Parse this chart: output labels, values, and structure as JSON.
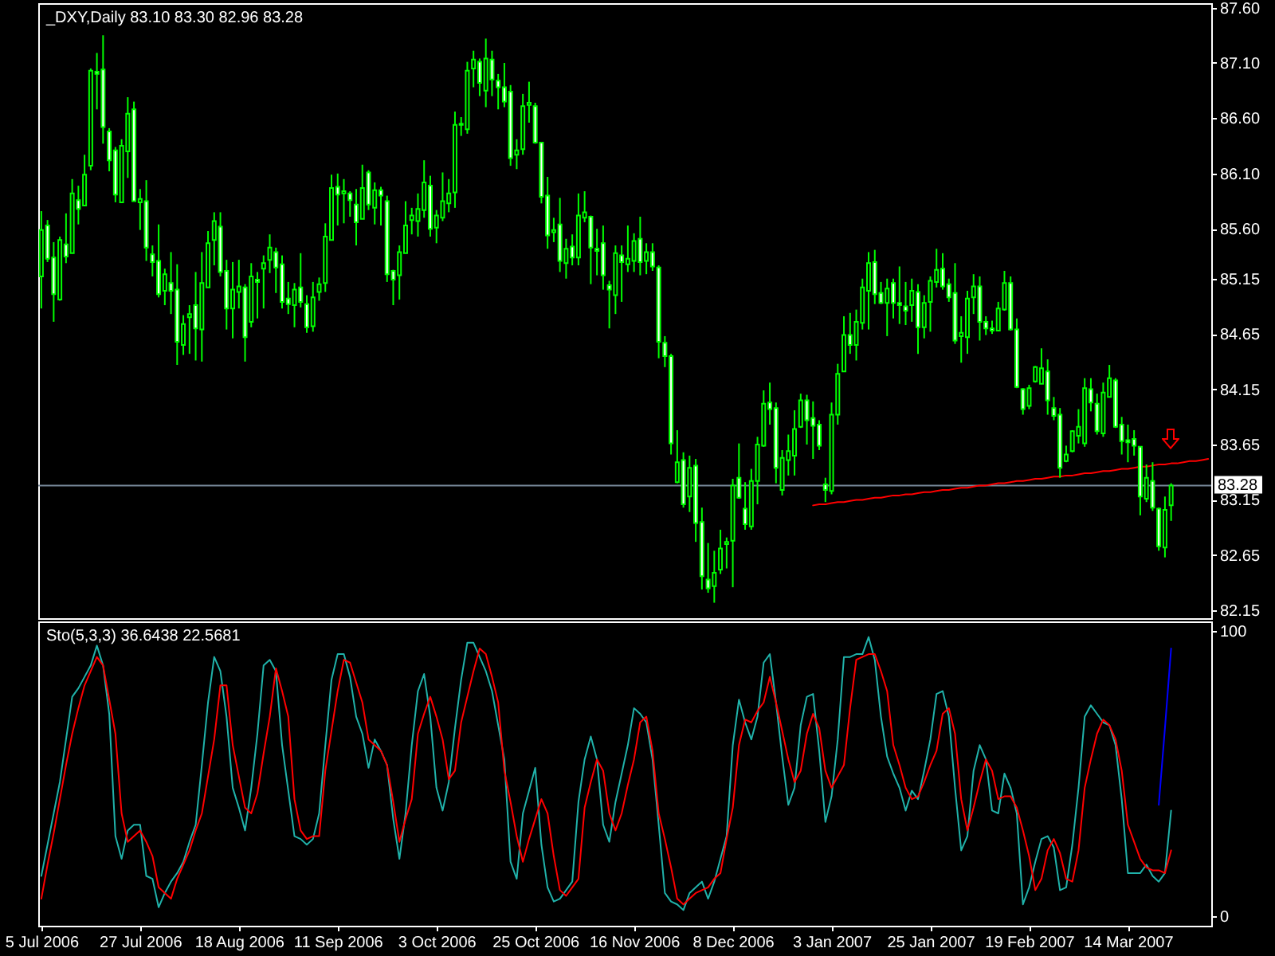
{
  "chart_data": [
    {
      "type": "candlestick",
      "title": "_DXY,Daily 83.10 83.30 82.96 83.28",
      "color": "#00ff00",
      "categories": [
        null,
        null,
        null,
        null,
        null,
        null,
        null,
        null,
        null,
        null,
        null,
        null,
        null,
        null,
        null,
        null,
        null,
        null,
        null,
        null,
        null,
        null,
        null,
        null,
        null,
        null,
        null,
        null,
        null,
        null,
        null,
        null,
        null,
        null,
        null,
        null,
        null,
        null,
        null,
        null,
        null,
        null,
        null,
        null,
        null,
        null,
        null,
        null,
        null,
        null,
        null,
        null,
        null,
        null,
        null,
        null,
        null,
        null,
        null,
        null,
        null,
        null,
        null,
        null,
        null,
        null,
        null,
        null,
        null,
        null,
        null,
        null,
        null,
        null,
        null,
        null,
        null,
        null,
        null,
        null,
        null,
        null,
        null,
        null,
        null,
        null,
        null,
        null,
        null,
        null,
        null,
        null,
        null,
        null,
        null,
        null,
        null,
        null,
        null,
        null,
        null,
        null,
        null,
        null,
        null,
        null,
        null,
        null,
        null,
        null,
        null,
        null,
        null,
        null,
        null,
        null,
        null,
        null,
        null,
        null,
        null,
        null,
        null,
        null,
        null,
        null,
        null,
        null,
        null,
        null,
        null,
        null,
        null,
        null,
        null,
        null,
        null,
        null,
        null,
        null,
        null,
        null,
        null,
        null,
        null,
        null,
        null,
        null,
        null,
        null,
        null,
        null,
        null,
        null,
        null,
        null,
        null,
        null,
        null,
        null,
        null,
        null,
        null,
        null,
        null,
        null,
        null,
        null,
        null,
        null,
        null,
        null,
        null,
        null,
        null,
        null,
        null,
        null,
        null,
        null,
        null,
        null,
        null,
        null,
        null,
        null,
        null,
        null,
        null,
        null
      ],
      "ohlc": [
        [
          85.17,
          85.76,
          84.88,
          85.59
        ],
        [
          85.63,
          85.68,
          85.3,
          85.33
        ],
        [
          85.34,
          85.48,
          84.76,
          85.01
        ],
        [
          84.96,
          85.53,
          84.95,
          85.5
        ],
        [
          85.46,
          85.74,
          85.29,
          85.35
        ],
        [
          85.38,
          86.05,
          85.38,
          85.92
        ],
        [
          85.86,
          85.99,
          85.64,
          85.78
        ],
        [
          85.81,
          86.27,
          85.81,
          86.09
        ],
        [
          86.17,
          87.05,
          86.13,
          87.03
        ],
        [
          87.02,
          87.19,
          86.68,
          87.0
        ],
        [
          87.04,
          87.35,
          86.37,
          86.52
        ],
        [
          86.48,
          86.51,
          86.12,
          86.22
        ],
        [
          86.31,
          86.34,
          85.84,
          85.91
        ],
        [
          85.84,
          86.41,
          85.84,
          86.35
        ],
        [
          86.3,
          86.79,
          86.06,
          86.64
        ],
        [
          86.68,
          86.75,
          85.85,
          85.85
        ],
        [
          85.84,
          85.96,
          85.59,
          85.87
        ],
        [
          85.85,
          86.04,
          85.31,
          85.43
        ],
        [
          85.37,
          85.45,
          85.17,
          85.3
        ],
        [
          85.31,
          85.64,
          84.98,
          85.01
        ],
        [
          85.04,
          85.24,
          84.91,
          85.19
        ],
        [
          85.11,
          85.39,
          84.83,
          85.04
        ],
        [
          85.05,
          85.28,
          84.37,
          84.58
        ],
        [
          84.55,
          84.82,
          84.46,
          84.74
        ],
        [
          84.8,
          84.91,
          84.47,
          84.83
        ],
        [
          84.91,
          85.21,
          84.41,
          84.7
        ],
        [
          84.69,
          85.39,
          84.4,
          85.11
        ],
        [
          85.07,
          85.58,
          85.07,
          85.47
        ],
        [
          85.5,
          85.75,
          85.27,
          85.67
        ],
        [
          85.62,
          85.75,
          85.17,
          85.21
        ],
        [
          85.22,
          85.32,
          84.69,
          84.88
        ],
        [
          84.88,
          85.3,
          84.61,
          85.05
        ],
        [
          85.03,
          85.32,
          84.88,
          85.08
        ],
        [
          85.07,
          85.1,
          84.4,
          84.62
        ],
        [
          84.76,
          85.29,
          84.71,
          85.17
        ],
        [
          85.14,
          85.21,
          84.79,
          85.12
        ],
        [
          85.24,
          85.36,
          84.88,
          85.29
        ],
        [
          85.32,
          85.55,
          85.2,
          85.43
        ],
        [
          85.39,
          85.43,
          85.02,
          85.25
        ],
        [
          85.28,
          85.36,
          84.88,
          84.94
        ],
        [
          84.97,
          85.12,
          84.83,
          84.92
        ],
        [
          84.91,
          85.11,
          84.71,
          85.05
        ],
        [
          85.07,
          85.38,
          84.89,
          84.94
        ],
        [
          84.92,
          85.0,
          84.66,
          84.71
        ],
        [
          84.72,
          85.12,
          84.67,
          84.98
        ],
        [
          85.03,
          85.16,
          84.95,
          85.1
        ],
        [
          85.11,
          85.65,
          85.03,
          85.53
        ],
        [
          85.5,
          86.09,
          85.5,
          85.97
        ],
        [
          85.98,
          86.1,
          85.63,
          85.91
        ],
        [
          85.92,
          86.05,
          85.65,
          85.94
        ],
        [
          85.92,
          85.94,
          85.71,
          85.86
        ],
        [
          85.82,
          85.96,
          85.45,
          85.66
        ],
        [
          85.69,
          86.18,
          85.69,
          85.97
        ],
        [
          86.11,
          86.13,
          85.77,
          85.82
        ],
        [
          85.79,
          86.02,
          85.64,
          85.95
        ],
        [
          85.95,
          85.98,
          85.63,
          85.9
        ],
        [
          85.85,
          85.9,
          85.12,
          85.19
        ],
        [
          85.22,
          85.23,
          84.91,
          85.14
        ],
        [
          85.18,
          85.45,
          84.96,
          85.39
        ],
        [
          85.38,
          85.85,
          85.38,
          85.63
        ],
        [
          85.68,
          85.79,
          85.55,
          85.72
        ],
        [
          85.67,
          85.92,
          85.53,
          85.78
        ],
        [
          85.77,
          86.22,
          85.7,
          86.02
        ],
        [
          85.99,
          86.08,
          85.53,
          85.6
        ],
        [
          85.61,
          85.77,
          85.47,
          85.72
        ],
        [
          85.7,
          86.11,
          85.67,
          85.85
        ],
        [
          85.83,
          86.05,
          85.75,
          85.92
        ],
        [
          85.93,
          86.66,
          85.79,
          86.54
        ],
        [
          86.54,
          86.61,
          86.44,
          86.55
        ],
        [
          86.5,
          87.11,
          86.46,
          87.03
        ],
        [
          87.05,
          87.21,
          86.88,
          87.13
        ],
        [
          87.11,
          87.14,
          86.8,
          86.92
        ],
        [
          86.85,
          87.32,
          86.7,
          87.14
        ],
        [
          87.13,
          87.21,
          86.8,
          86.95
        ],
        [
          86.94,
          87.0,
          86.68,
          86.88
        ],
        [
          86.88,
          87.1,
          86.7,
          86.75
        ],
        [
          86.84,
          86.9,
          86.17,
          86.24
        ],
        [
          86.27,
          86.41,
          86.14,
          86.31
        ],
        [
          86.32,
          86.82,
          86.27,
          86.71
        ],
        [
          86.72,
          86.93,
          86.56,
          86.74
        ],
        [
          86.71,
          86.74,
          86.37,
          86.38
        ],
        [
          86.38,
          86.38,
          85.83,
          85.89
        ],
        [
          85.9,
          86.07,
          85.42,
          85.54
        ],
        [
          85.57,
          85.7,
          85.48,
          85.59
        ],
        [
          85.64,
          85.88,
          85.21,
          85.31
        ],
        [
          85.29,
          85.51,
          85.15,
          85.42
        ],
        [
          85.44,
          85.55,
          85.27,
          85.34
        ],
        [
          85.34,
          85.92,
          85.27,
          85.72
        ],
        [
          85.7,
          85.94,
          85.66,
          85.75
        ],
        [
          85.71,
          85.72,
          85.1,
          85.43
        ],
        [
          85.42,
          85.6,
          85.18,
          85.4
        ],
        [
          85.47,
          85.63,
          85.05,
          85.18
        ],
        [
          85.09,
          85.13,
          84.7,
          85.05
        ],
        [
          85.0,
          85.45,
          84.83,
          85.38
        ],
        [
          85.36,
          85.45,
          84.94,
          85.3
        ],
        [
          85.28,
          85.63,
          85.21,
          85.33
        ],
        [
          85.31,
          85.56,
          85.21,
          85.49
        ],
        [
          85.51,
          85.71,
          85.18,
          85.3
        ],
        [
          85.31,
          85.47,
          85.19,
          85.39
        ],
        [
          85.39,
          85.47,
          85.22,
          85.26
        ],
        [
          85.25,
          85.27,
          84.43,
          84.58
        ],
        [
          84.57,
          84.63,
          84.35,
          84.45
        ],
        [
          84.45,
          84.47,
          83.56,
          83.66
        ],
        [
          83.31,
          83.78,
          83.3,
          83.49
        ],
        [
          83.51,
          83.58,
          83.08,
          83.11
        ],
        [
          83.18,
          83.55,
          83.04,
          83.44
        ],
        [
          83.46,
          83.52,
          82.77,
          82.94
        ],
        [
          82.95,
          83.08,
          82.34,
          82.46
        ],
        [
          82.43,
          82.76,
          82.31,
          82.35
        ],
        [
          82.37,
          82.69,
          82.22,
          82.49
        ],
        [
          82.52,
          82.88,
          82.48,
          82.71
        ],
        [
          82.75,
          82.81,
          82.53,
          82.77
        ],
        [
          82.78,
          83.34,
          82.36,
          83.28
        ],
        [
          83.35,
          83.66,
          83.16,
          83.17
        ],
        [
          83.07,
          83.31,
          82.88,
          82.93
        ],
        [
          82.91,
          83.43,
          82.88,
          83.32
        ],
        [
          83.32,
          83.72,
          83.11,
          83.65
        ],
        [
          83.64,
          84.14,
          83.63,
          84.02
        ],
        [
          84.03,
          84.21,
          83.83,
          83.97
        ],
        [
          83.98,
          84.03,
          83.3,
          83.44
        ],
        [
          83.24,
          83.6,
          83.19,
          83.53
        ],
        [
          83.51,
          83.74,
          83.37,
          83.59
        ],
        [
          83.55,
          83.96,
          83.37,
          83.79
        ],
        [
          83.81,
          84.11,
          83.8,
          84.05
        ],
        [
          84.05,
          84.1,
          83.65,
          83.87
        ],
        [
          83.89,
          84.04,
          83.52,
          83.82
        ],
        [
          83.83,
          83.87,
          83.6,
          83.64
        ],
        [
          83.29,
          83.35,
          83.13,
          83.24
        ],
        [
          83.23,
          84.03,
          83.2,
          83.92
        ],
        [
          83.92,
          84.38,
          83.83,
          84.29
        ],
        [
          84.31,
          84.81,
          84.31,
          84.64
        ],
        [
          84.64,
          84.84,
          84.47,
          84.55
        ],
        [
          84.55,
          84.87,
          84.41,
          84.76
        ],
        [
          84.75,
          85.15,
          84.69,
          85.07
        ],
        [
          85.04,
          85.39,
          84.69,
          85.29
        ],
        [
          85.3,
          85.41,
          84.92,
          85.01
        ],
        [
          85.02,
          85.12,
          84.92,
          84.93
        ],
        [
          84.93,
          85.15,
          84.63,
          85.06
        ],
        [
          85.11,
          85.15,
          84.79,
          84.93
        ],
        [
          84.93,
          85.26,
          84.74,
          84.91
        ],
        [
          84.9,
          85.12,
          84.73,
          84.86
        ],
        [
          84.91,
          85.15,
          84.76,
          85.04
        ],
        [
          85.03,
          85.1,
          84.47,
          84.71
        ],
        [
          84.71,
          85.0,
          84.61,
          84.93
        ],
        [
          84.94,
          85.17,
          84.67,
          85.13
        ],
        [
          85.12,
          85.42,
          85.07,
          85.23
        ],
        [
          85.24,
          85.38,
          85.05,
          85.08
        ],
        [
          85.1,
          85.15,
          84.94,
          84.98
        ],
        [
          85.02,
          85.29,
          84.56,
          84.59
        ],
        [
          84.63,
          84.81,
          84.39,
          84.66
        ],
        [
          84.62,
          85.04,
          84.47,
          84.97
        ],
        [
          84.98,
          85.19,
          84.83,
          85.08
        ],
        [
          85.08,
          85.17,
          84.59,
          84.76
        ],
        [
          84.76,
          84.81,
          84.64,
          84.7
        ],
        [
          84.7,
          84.77,
          84.65,
          84.68
        ],
        [
          84.68,
          84.94,
          84.68,
          84.88
        ],
        [
          84.87,
          85.22,
          84.86,
          85.11
        ],
        [
          85.11,
          85.17,
          84.68,
          84.69
        ],
        [
          84.69,
          84.79,
          84.16,
          84.17
        ],
        [
          84.15,
          84.16,
          83.92,
          83.97
        ],
        [
          84.0,
          84.19,
          83.97,
          84.16
        ],
        [
          84.22,
          84.36,
          84.21,
          84.35
        ],
        [
          84.2,
          84.52,
          84.2,
          84.34
        ],
        [
          84.31,
          84.42,
          83.92,
          84.05
        ],
        [
          83.98,
          84.08,
          83.87,
          83.91
        ],
        [
          83.92,
          83.98,
          83.35,
          83.44
        ],
        [
          83.5,
          83.64,
          83.49,
          83.56
        ],
        [
          83.59,
          83.78,
          83.58,
          83.77
        ],
        [
          83.73,
          83.97,
          83.66,
          83.81
        ],
        [
          83.66,
          84.25,
          83.63,
          84.16
        ],
        [
          84.15,
          84.25,
          83.95,
          84.03
        ],
        [
          84.02,
          84.11,
          83.74,
          83.77
        ],
        [
          83.75,
          84.21,
          83.72,
          84.12
        ],
        [
          84.08,
          84.37,
          84.08,
          84.25
        ],
        [
          84.23,
          84.25,
          83.8,
          83.81
        ],
        [
          83.83,
          83.9,
          83.56,
          83.68
        ],
        [
          83.69,
          83.83,
          83.49,
          83.67
        ],
        [
          83.7,
          83.78,
          83.55,
          83.64
        ],
        [
          83.63,
          83.63,
          83.01,
          83.18
        ],
        [
          83.16,
          83.47,
          83.13,
          83.35
        ],
        [
          83.32,
          83.49,
          83.05,
          83.08
        ],
        [
          83.07,
          83.08,
          82.69,
          82.73
        ],
        [
          82.72,
          83.18,
          82.63,
          83.06
        ],
        [
          83.1,
          83.3,
          82.96,
          83.28
        ],
        null,
        null,
        null,
        null,
        null,
        null
      ],
      "series": [
        {
          "type": "line",
          "color": "#ff0000",
          "values": [
            null,
            null,
            null,
            null,
            null,
            null,
            null,
            null,
            null,
            null,
            null,
            null,
            null,
            null,
            null,
            null,
            null,
            null,
            null,
            null,
            null,
            null,
            null,
            null,
            null,
            null,
            null,
            null,
            null,
            null,
            null,
            null,
            null,
            null,
            null,
            null,
            null,
            null,
            null,
            null,
            null,
            null,
            null,
            null,
            null,
            null,
            null,
            null,
            null,
            null,
            null,
            null,
            null,
            null,
            null,
            null,
            null,
            null,
            null,
            null,
            null,
            null,
            null,
            null,
            null,
            null,
            null,
            null,
            null,
            null,
            null,
            null,
            null,
            null,
            null,
            null,
            null,
            null,
            null,
            null,
            null,
            null,
            null,
            null,
            null,
            null,
            null,
            null,
            null,
            null,
            null,
            null,
            null,
            null,
            null,
            null,
            null,
            null,
            null,
            null,
            null,
            null,
            null,
            null,
            null,
            null,
            null,
            null,
            null,
            null,
            null,
            null,
            null,
            null,
            null,
            null,
            null,
            null,
            null,
            null,
            null,
            null,
            null,
            null,
            null,
            83.1,
            83.11,
            83.11,
            83.12,
            83.13,
            83.13,
            83.14,
            83.15,
            83.15,
            83.16,
            83.17,
            83.17,
            83.18,
            83.19,
            83.19,
            83.2,
            83.2,
            83.21,
            83.22,
            83.22,
            83.23,
            83.24,
            83.24,
            83.25,
            83.26,
            83.26,
            83.27,
            83.28,
            83.28,
            83.29,
            83.3,
            83.3,
            83.31,
            83.32,
            83.32,
            83.33,
            83.34,
            83.34,
            83.35,
            83.36,
            83.36,
            83.37,
            83.37,
            83.38,
            83.39,
            83.39,
            83.4,
            83.41,
            83.41,
            83.42,
            83.43,
            83.43,
            83.44,
            83.45,
            83.45,
            83.46,
            83.47,
            83.47,
            83.48,
            83.48,
            83.49,
            83.5,
            83.5,
            83.51,
            83.52
          ]
        }
      ],
      "ref_lines": [
        {
          "axis": "y",
          "value": 83.28,
          "label": "83.28",
          "color": "#778899"
        }
      ],
      "ylim": [
        82.08,
        87.64
      ],
      "yticks": [
        {
          "value": 87.6,
          "label": "87.60"
        },
        {
          "value": 87.1,
          "label": "87.10"
        },
        {
          "value": 86.6,
          "label": "86.60"
        },
        {
          "value": 86.1,
          "label": "86.10"
        },
        {
          "value": 85.6,
          "label": "85.60"
        },
        85.15,
        84.65,
        84.15,
        83.65,
        83.15,
        82.65,
        82.15
      ],
      "tick_labels": "y"
    },
    {
      "type": "line",
      "title": "Sto(5,3,3) 36.6438 22.5681",
      "categories": [
        "5 Jul 2006",
        null,
        null,
        null,
        null,
        null,
        null,
        null,
        null,
        null,
        null,
        null,
        null,
        null,
        null,
        null,
        "27 Jul 2006",
        null,
        null,
        null,
        null,
        null,
        null,
        null,
        null,
        null,
        null,
        null,
        null,
        null,
        null,
        null,
        "18 Aug 2006",
        null,
        null,
        null,
        null,
        null,
        null,
        null,
        null,
        null,
        null,
        null,
        null,
        null,
        null,
        null,
        "11 Sep 2006",
        null,
        null,
        null,
        null,
        null,
        null,
        null,
        null,
        null,
        null,
        null,
        null,
        null,
        null,
        null,
        "3 Oct 2006",
        null,
        null,
        null,
        null,
        null,
        null,
        null,
        null,
        null,
        null,
        null,
        null,
        null,
        null,
        null,
        "25 Oct 2006",
        null,
        null,
        null,
        null,
        null,
        null,
        null,
        null,
        null,
        null,
        null,
        null,
        null,
        null,
        null,
        "16 Nov 2006",
        null,
        null,
        null,
        null,
        null,
        null,
        null,
        null,
        null,
        null,
        null,
        null,
        null,
        null,
        null,
        "8 Dec 2006",
        null,
        null,
        null,
        null,
        null,
        null,
        null,
        null,
        null,
        null,
        null,
        null,
        null,
        null,
        null,
        "3 Jan 2007",
        null,
        null,
        null,
        null,
        null,
        null,
        null,
        null,
        null,
        null,
        null,
        null,
        null,
        null,
        null,
        "25 Jan 2007",
        null,
        null,
        null,
        null,
        null,
        null,
        null,
        null,
        null,
        null,
        null,
        null,
        null,
        null,
        null,
        "19 Feb 2007",
        null,
        null,
        null,
        null,
        null,
        null,
        null,
        null,
        null,
        null,
        null,
        null,
        null,
        null,
        null,
        "14 Mar 2007",
        null,
        null,
        null,
        null,
        null,
        null,
        null,
        null,
        null,
        null,
        null,
        null,
        null
      ],
      "series": [
        {
          "color": "#20b2aa",
          "values": [
            14,
            25,
            36,
            47,
            62,
            77,
            80,
            84,
            88,
            95,
            88,
            71,
            28,
            20,
            30,
            32,
            32,
            14,
            13,
            3,
            8,
            12,
            15,
            19,
            26,
            32,
            53,
            75,
            91,
            86,
            70,
            45,
            38,
            30,
            45,
            64,
            88,
            90,
            86,
            60,
            44,
            28,
            27,
            25,
            27,
            36,
            60,
            83,
            92,
            92,
            84,
            70,
            64,
            52,
            62,
            58,
            53,
            34,
            20,
            36,
            60,
            79,
            85,
            70,
            45,
            37,
            47,
            66,
            83,
            96,
            96,
            91,
            86,
            79,
            67,
            55,
            19,
            13,
            36,
            44,
            52,
            25,
            10,
            5,
            6,
            9,
            12,
            40,
            55,
            63,
            55,
            32,
            26,
            40,
            50,
            60,
            73,
            71,
            68,
            55,
            32,
            8,
            5,
            4,
            2,
            8,
            10,
            12,
            6,
            12,
            20,
            28,
            60,
            76,
            68,
            62,
            70,
            89,
            92,
            75,
            56,
            39,
            45,
            67,
            77,
            78,
            58,
            33,
            42,
            62,
            91,
            91,
            92,
            92,
            98,
            90,
            70,
            56,
            50,
            45,
            37,
            44,
            41,
            51,
            62,
            78,
            79,
            70,
            45,
            23,
            28,
            51,
            60,
            55,
            37,
            36,
            50,
            45,
            36,
            4,
            10,
            19,
            27,
            28,
            24,
            9,
            10,
            25,
            45,
            70,
            74,
            71,
            68,
            67,
            60,
            41,
            15,
            15,
            15,
            18,
            14,
            12,
            15,
            37,
            null,
            null,
            null,
            null,
            null,
            null
          ]
        },
        {
          "color": "#ff0000",
          "values": [
            6,
            18,
            29,
            41,
            53,
            64,
            73,
            81,
            86,
            91,
            88,
            76,
            64,
            36,
            26,
            28,
            30,
            26,
            21,
            10,
            8,
            6,
            13,
            18,
            23,
            30,
            36,
            49,
            62,
            81,
            81,
            60,
            49,
            38,
            36,
            43,
            57,
            70,
            87,
            79,
            70,
            41,
            30,
            27,
            28,
            28,
            51,
            65,
            79,
            90,
            89,
            82,
            75,
            62,
            60,
            58,
            53,
            40,
            26,
            34,
            41,
            64,
            71,
            77,
            70,
            62,
            48,
            51,
            68,
            77,
            86,
            94,
            92,
            84,
            75,
            51,
            40,
            28,
            19,
            27,
            34,
            41,
            36,
            21,
            9,
            7,
            10,
            13,
            38,
            47,
            55,
            51,
            36,
            30,
            36,
            46,
            55,
            68,
            70,
            58,
            36,
            27,
            17,
            6,
            4,
            6,
            8,
            9,
            10,
            13,
            15,
            27,
            38,
            60,
            69,
            68,
            72,
            75,
            84,
            75,
            65,
            55,
            47,
            51,
            64,
            71,
            66,
            51,
            45,
            49,
            53,
            73,
            90,
            91,
            92,
            92,
            86,
            79,
            60,
            53,
            45,
            41,
            42,
            47,
            53,
            58,
            71,
            73,
            64,
            41,
            30,
            38,
            47,
            55,
            51,
            41,
            42,
            42,
            38,
            30,
            21,
            9,
            13,
            23,
            27,
            22,
            13,
            12,
            23,
            45,
            55,
            64,
            69,
            67,
            62,
            51,
            32,
            26,
            20,
            17,
            16,
            16,
            15,
            23,
            null,
            null,
            null,
            null,
            null,
            null
          ]
        },
        {
          "color": "#0000ff",
          "values": [
            null,
            null,
            null,
            null,
            null,
            null,
            null,
            null,
            null,
            null,
            null,
            null,
            null,
            null,
            null,
            null,
            null,
            null,
            null,
            null,
            null,
            null,
            null,
            null,
            null,
            null,
            null,
            null,
            null,
            null,
            null,
            null,
            null,
            null,
            null,
            null,
            null,
            null,
            null,
            null,
            null,
            null,
            null,
            null,
            null,
            null,
            null,
            null,
            null,
            null,
            null,
            null,
            null,
            null,
            null,
            null,
            null,
            null,
            null,
            null,
            null,
            null,
            null,
            null,
            null,
            null,
            null,
            null,
            null,
            null,
            null,
            null,
            null,
            null,
            null,
            null,
            null,
            null,
            null,
            null,
            null,
            null,
            null,
            null,
            null,
            null,
            null,
            null,
            null,
            null,
            null,
            null,
            null,
            null,
            null,
            null,
            null,
            null,
            null,
            null,
            null,
            null,
            null,
            null,
            null,
            null,
            null,
            null,
            null,
            null,
            null,
            null,
            null,
            null,
            null,
            null,
            null,
            null,
            null,
            null,
            null,
            null,
            null,
            null,
            null,
            null,
            null,
            null,
            null,
            null,
            null,
            null,
            null,
            null,
            null,
            null,
            null,
            null,
            null,
            null,
            null,
            null,
            null,
            null,
            null,
            null,
            null,
            null,
            null,
            null,
            null,
            null,
            null,
            null,
            null,
            null,
            null,
            null,
            null,
            null,
            null,
            null,
            null,
            null,
            null,
            null,
            null,
            null,
            null,
            null,
            null,
            null,
            null,
            null,
            null,
            null,
            null,
            null,
            null,
            null,
            null,
            39,
            66,
            94,
            null,
            null,
            null,
            null,
            null,
            null
          ]
        }
      ],
      "ylim": [
        -3.5,
        103.5
      ],
      "yticks": [
        100,
        0
      ]
    }
  ]
}
